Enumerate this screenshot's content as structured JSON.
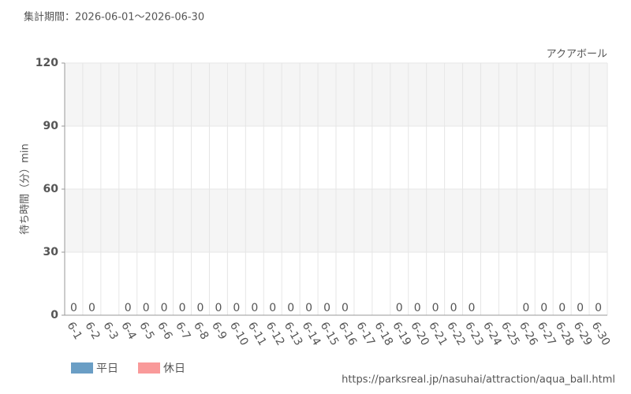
{
  "chart_data": {
    "type": "bar",
    "title": "集計期間：2026-06-01～2026-06-30",
    "subtitle": "アクアボール",
    "y_label": "待ち時間（分）min",
    "source": "https://parksreal.jp/nasuhai/attraction/aqua_ball.html",
    "categories": [
      "6-1",
      "6-2",
      "6-3",
      "6-4",
      "6-5",
      "6-6",
      "6-7",
      "6-8",
      "6-9",
      "6-10",
      "6-11",
      "6-12",
      "6-13",
      "6-14",
      "6-15",
      "6-16",
      "6-17",
      "6-18",
      "6-19",
      "6-20",
      "6-21",
      "6-22",
      "6-23",
      "6-24",
      "6-25",
      "6-26",
      "6-27",
      "6-28",
      "6-29",
      "6-30"
    ],
    "series": [
      {
        "name": "平日",
        "color": "#6a9ec5",
        "values": [
          0,
          0,
          null,
          0,
          0,
          null,
          null,
          0,
          0,
          0,
          0,
          0,
          null,
          null,
          0,
          0,
          null,
          null,
          0,
          null,
          null,
          0,
          0,
          null,
          null,
          0,
          null,
          null,
          0,
          0
        ]
      },
      {
        "name": "休日",
        "color": "#f99a9a",
        "values": [
          null,
          null,
          null,
          null,
          null,
          0,
          0,
          null,
          null,
          null,
          null,
          null,
          0,
          0,
          null,
          null,
          null,
          null,
          null,
          0,
          0,
          null,
          null,
          null,
          null,
          null,
          0,
          0,
          null,
          null
        ]
      }
    ],
    "ylim": [
      0,
      120
    ],
    "yticks": [
      0,
      30,
      60,
      90,
      120
    ],
    "grid": true
  }
}
